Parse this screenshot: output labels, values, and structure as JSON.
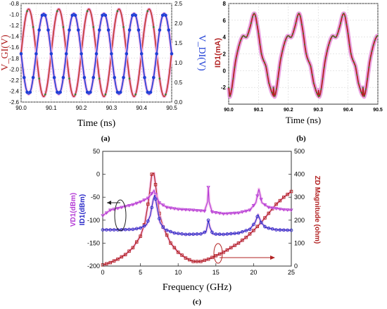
{
  "chart_data": [
    {
      "type": "line",
      "panel_label": "(a)",
      "xlabel": "Time (ns)",
      "ylabel_left": "V_GI(V)",
      "ylabel_right": "V_DI(V)",
      "xlim": [
        90.0,
        90.5
      ],
      "ylim_left": [
        -2.6,
        -0.8
      ],
      "ylim_right": [
        0.0,
        2.5
      ],
      "x_ticks": [
        "90.0",
        "90.1",
        "90.2",
        "90.3",
        "90.4",
        "90.5"
      ],
      "y_ticks_left": [
        "-0.8",
        "-1.0",
        "-1.2",
        "-1.4",
        "-1.6",
        "-1.8",
        "-2.0",
        "-2.2",
        "-2.4",
        "-2.6"
      ],
      "y_ticks_right": [
        "2.5",
        "2.0",
        "1.5",
        "1.0",
        "0.5",
        "0.0"
      ],
      "grid": true,
      "series": [
        {
          "axis": "left",
          "color": "#c0392b",
          "waveform": "sine",
          "period_ns": 0.1,
          "min": -2.5,
          "max": -0.9,
          "start_phase": "peak_at_90.025"
        },
        {
          "axis": "right",
          "color": "#1f3fd6",
          "waveform": "sine",
          "period_ns": 0.1,
          "min": 0.2,
          "max": 2.25,
          "start_phase": "trough_at_90.025"
        }
      ]
    },
    {
      "type": "line",
      "panel_label": "(b)",
      "xlabel": "Time (ns)",
      "ylabel": "ID1(mA)",
      "xlim": [
        90.0,
        90.5
      ],
      "ylim": [
        -4,
        8
      ],
      "x_ticks": [
        "90.0",
        "90.1",
        "90.2",
        "90.3",
        "90.4",
        "90.5"
      ],
      "y_ticks": [
        "8",
        "6",
        "4",
        "2",
        "0",
        "-2"
      ],
      "grid": true,
      "series": [
        {
          "color": "#b22222",
          "halo": "#e58ad8",
          "period_ns": 0.15,
          "x": [
            90.0,
            90.005,
            90.025,
            90.045,
            90.06,
            90.07,
            90.085,
            90.095,
            90.11,
            90.125,
            90.135,
            90.15
          ],
          "y": [
            -2.0,
            -3.0,
            1.5,
            4.0,
            4.0,
            5.0,
            6.8,
            5.5,
            2.0,
            0.5,
            -1.5,
            -3.0
          ]
        }
      ]
    },
    {
      "type": "line",
      "panel_label": "(c)",
      "xlabel": "Frequency (GHz)",
      "ylabel_left": "ID1(dBm)",
      "ylabel_left_2": "VD1(dBm)",
      "ylabel_right": "ZD Magnitude (ohm)",
      "xlim": [
        0,
        25
      ],
      "ylim_left": [
        -200,
        50
      ],
      "ylim_right": [
        0,
        500
      ],
      "x_ticks": [
        "0",
        "5",
        "10",
        "15",
        "20",
        "25"
      ],
      "y_ticks_left": [
        "50",
        "0",
        "-50",
        "-100",
        "-150",
        "-200"
      ],
      "y_ticks_right": [
        "500",
        "400",
        "300",
        "200",
        "100",
        "0"
      ],
      "grid": false,
      "series": [
        {
          "name": "VD1(dBm)",
          "axis": "left",
          "color": "#b43cd6",
          "x": [
            0,
            1,
            2,
            3,
            4,
            5,
            6,
            6.5,
            6.8,
            7.1,
            7.5,
            8.5,
            10,
            12,
            13.5,
            13.9,
            14.0,
            14.1,
            14.5,
            16,
            18,
            19.5,
            20.3,
            20.7,
            21.1,
            22,
            24,
            25
          ],
          "y": [
            -90,
            -78,
            -74,
            -70,
            -66,
            -60,
            -52,
            -42,
            -35,
            -48,
            -62,
            -72,
            -76,
            -78,
            -80,
            -60,
            -28,
            -60,
            -82,
            -86,
            -84,
            -78,
            -62,
            -32,
            -62,
            -72,
            -77,
            -78
          ]
        },
        {
          "name": "ID1(dBm)",
          "axis": "left",
          "color": "#2b2bc8",
          "x": [
            0,
            2,
            4,
            5,
            5.8,
            6.3,
            6.7,
            6.9,
            7.2,
            7.6,
            8.2,
            9.5,
            11,
            13,
            13.7,
            13.9,
            14.0,
            14.2,
            14.6,
            16,
            18,
            19.5,
            20.2,
            20.6,
            21.0,
            21.6,
            23,
            25
          ],
          "y": [
            -121,
            -121,
            -120,
            -117,
            -110,
            -90,
            -55,
            -45,
            -72,
            -105,
            -120,
            -128,
            -131,
            -130,
            -125,
            -110,
            -100,
            -115,
            -130,
            -131,
            -128,
            -120,
            -105,
            -88,
            -105,
            -116,
            -121,
            -122
          ]
        },
        {
          "name": "ZD Magnitude (ohm)",
          "axis": "right",
          "color": "#b22222",
          "x": [
            0,
            1,
            2,
            3,
            4,
            5,
            5.6,
            6.1,
            6.5,
            6.8,
            7.1,
            7.5,
            8,
            9,
            10,
            11,
            12,
            13,
            14,
            15,
            16,
            17,
            18,
            19,
            20,
            21,
            22,
            23,
            24,
            25
          ],
          "y": [
            5,
            15,
            30,
            50,
            80,
            130,
            190,
            290,
            400,
            405,
            330,
            230,
            170,
            100,
            60,
            35,
            20,
            20,
            30,
            45,
            60,
            80,
            100,
            125,
            155,
            190,
            230,
            270,
            300,
            325
          ]
        }
      ],
      "annotations": [
        {
          "type": "ellipse_arrow",
          "target": "left_axis",
          "direction": "left"
        },
        {
          "type": "ellipse_arrow",
          "target": "right_axis",
          "direction": "right"
        }
      ]
    }
  ]
}
